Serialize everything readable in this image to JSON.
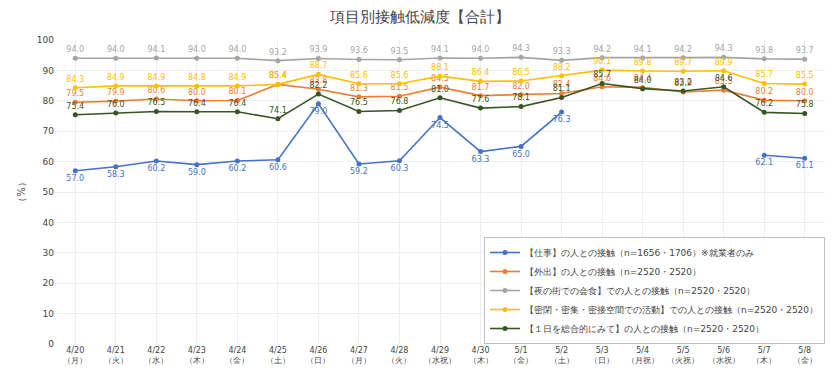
{
  "chart_data": {
    "type": "line",
    "title": "項目別接触低減度【合計】",
    "ylabel": "（%）",
    "categories": [
      "4/20\n（月）",
      "4/21\n（火）",
      "4/22\n（水）",
      "4/23\n（木）",
      "4/24\n（金）",
      "4/25\n（土）",
      "4/26\n（日）",
      "4/27\n（月）",
      "4/28\n（火）",
      "4/29\n（水祝）",
      "4/30\n（木）",
      "5/1\n（金）",
      "5/2\n（土）",
      "5/3\n（日）",
      "5/4\n（月祝）",
      "5/5\n（火祝）",
      "5/6\n（水祝）",
      "5/7\n（木）",
      "5/8\n（金）"
    ],
    "series": [
      {
        "name": "【仕事】の人との接触（n=1656・1706）※就業者のみ",
        "color": "#4472C4",
        "values": [
          57.0,
          58.3,
          60.2,
          59.0,
          60.2,
          60.6,
          79.0,
          59.2,
          60.3,
          74.5,
          63.3,
          65.0,
          76.3,
          null,
          null,
          null,
          null,
          62.1,
          61.1
        ],
        "value_labels": [
          "57.0",
          "58.3",
          "60.2",
          "59.0",
          "60.2",
          "60.6",
          "79.0",
          "59.2",
          "60.3",
          "74.5",
          "63.3",
          "65.0",
          "76.3",
          null,
          null,
          null,
          null,
          "62.1",
          "61.1"
        ]
      },
      {
        "name": "【外出】の人との接触（n=2520・2520）",
        "color": "#ED7D31",
        "values": [
          79.5,
          79.9,
          80.6,
          80.0,
          80.1,
          85.4,
          83.8,
          81.3,
          81.5,
          84.5,
          81.7,
          82.0,
          82.4,
          84.6,
          84.4,
          82.9,
          83.5,
          80.2,
          80.0
        ],
        "value_labels": [
          "79.5",
          "79.9",
          "80.6",
          "80.0",
          "80.1",
          "85.4",
          "83.8",
          "81.3",
          "81.5",
          "84.5",
          "81.7",
          "82.0",
          "82.4",
          "84.6",
          "84.4",
          "82.9",
          "83.5",
          "80.2",
          "80.0"
        ]
      },
      {
        "name": "【夜の街での会食】での人との接触（n=2520・2520）",
        "color": "#A5A5A5",
        "values": [
          94.0,
          94.0,
          94.1,
          94.0,
          94.0,
          93.2,
          93.9,
          93.6,
          93.5,
          94.1,
          94.0,
          94.3,
          93.3,
          94.2,
          94.1,
          94.2,
          94.3,
          93.8,
          93.7
        ],
        "value_labels": [
          "94.0",
          "94.0",
          "94.1",
          "94.0",
          "94.0",
          "93.2",
          "93.9",
          "93.6",
          "93.5",
          "94.1",
          "94.0",
          "94.3",
          "93.3",
          "94.2",
          "94.1",
          "94.2",
          "94.3",
          "93.8",
          "93.7"
        ]
      },
      {
        "name": "【密閉・密集・密接空間での活動】での人との接触（n=2520・2520）",
        "color": "#FFC000",
        "values": [
          84.3,
          84.9,
          84.9,
          84.8,
          84.9,
          85.4,
          88.7,
          85.6,
          85.6,
          88.1,
          86.4,
          86.5,
          88.2,
          90.1,
          89.8,
          89.7,
          89.9,
          85.7,
          85.5
        ],
        "value_labels": [
          "84.3",
          "84.9",
          "84.9",
          "84.8",
          "84.9",
          "85.4",
          "88.7",
          "85.6",
          "85.6",
          "88.1",
          "86.4",
          "86.5",
          "88.2",
          "90.1",
          "89.8",
          "89.7",
          "89.9",
          "85.7",
          "85.5"
        ]
      },
      {
        "name": "【１日を総合的にみて】の人との接触（n=2520・2520）",
        "color": "#375623",
        "values": [
          75.4,
          76.0,
          76.5,
          76.4,
          76.4,
          74.1,
          82.2,
          76.5,
          76.8,
          81.0,
          77.6,
          78.1,
          81.1,
          85.7,
          84.0,
          83.2,
          84.6,
          76.2,
          75.8
        ],
        "value_labels": [
          "75.4",
          "76.0",
          "76.5",
          "76.4",
          "76.4",
          "74.1",
          "82.2",
          "76.5",
          "76.8",
          "81.0",
          "77.6",
          "78.1",
          "81.1",
          "85.7",
          "84.0",
          "83.2",
          "84.6",
          "76.2",
          "75.8"
        ]
      }
    ],
    "ylim": [
      0,
      100
    ],
    "yticks": [
      0,
      10,
      20,
      30,
      40,
      50,
      60,
      70,
      80,
      90,
      100
    ],
    "grid": true,
    "legend": "lower right",
    "data_labels": true,
    "marker": "circle"
  }
}
